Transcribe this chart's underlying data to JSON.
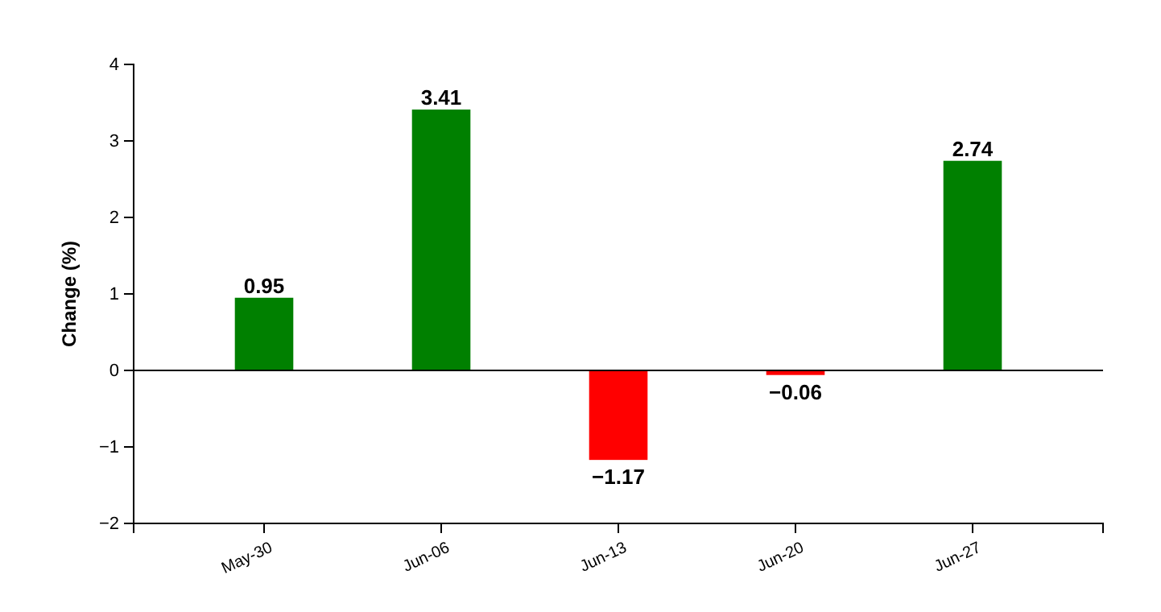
{
  "chart_data": {
    "type": "bar",
    "ylabel": "Change (%)",
    "categories": [
      "May-30",
      "Jun-06",
      "Jun-13",
      "Jun-20",
      "Jun-27"
    ],
    "values": [
      0.95,
      3.41,
      -1.17,
      -0.06,
      2.74
    ],
    "colors": [
      "#008000",
      "#008000",
      "#ff0000",
      "#ff0000",
      "#008000"
    ],
    "value_labels": [
      "0.95",
      "3.41",
      "−1.17",
      "−0.06",
      "2.74"
    ],
    "ylim": [
      -2,
      4
    ],
    "yticks": [
      {
        "value": -2,
        "label": "−2"
      },
      {
        "value": -1,
        "label": "−1"
      },
      0,
      1,
      2,
      3,
      4
    ],
    "ref_lines": [
      {
        "axis": "y",
        "value": 0,
        "color": "#000000"
      }
    ]
  }
}
